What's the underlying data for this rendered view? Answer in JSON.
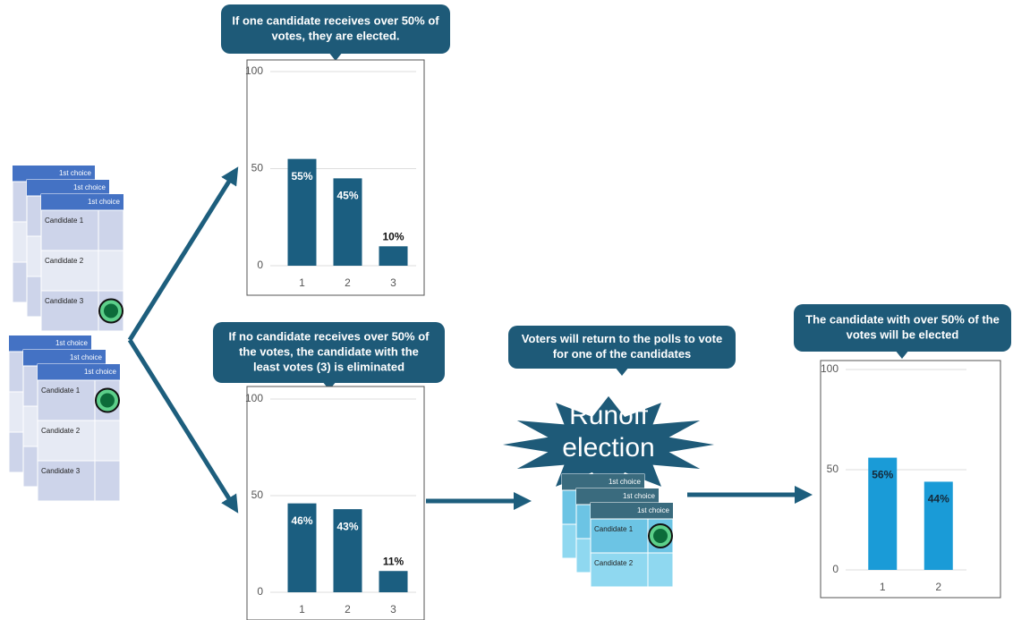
{
  "callouts": [
    {
      "lines": [
        "If one candidate receives over 50% of",
        "votes, they are elected."
      ]
    },
    {
      "lines": [
        "If no candidate receives over 50% of",
        "the votes, the candidate with the",
        "least votes (3) is eliminated"
      ]
    },
    {
      "lines": [
        "Voters will return to the polls to vote",
        "for one of the candidates"
      ]
    },
    {
      "lines": [
        "The candidate with over 50% of the",
        "votes will be elected"
      ]
    }
  ],
  "runoff": {
    "lines": [
      "Runoff",
      "election"
    ]
  },
  "ballot": {
    "header": "1st choice",
    "candidates": [
      "Candidate 1",
      "Candidate 2",
      "Candidate 3"
    ]
  },
  "chart_data": [
    {
      "type": "bar",
      "categories": [
        "1",
        "2",
        "3"
      ],
      "values": [
        55,
        45,
        10
      ],
      "value_labels": [
        "55%",
        "45%",
        "10%"
      ],
      "color": "#1b5e80",
      "ylim": [
        0,
        100
      ],
      "yticks": [
        0,
        50,
        100
      ],
      "grid": true
    },
    {
      "type": "bar",
      "categories": [
        "1",
        "2",
        "3"
      ],
      "values": [
        46,
        43,
        11
      ],
      "value_labels": [
        "46%",
        "43%",
        "11%"
      ],
      "color": "#1b5e80",
      "ylim": [
        0,
        100
      ],
      "yticks": [
        0,
        50,
        100
      ],
      "grid": true
    },
    {
      "type": "bar",
      "categories": [
        "1",
        "2"
      ],
      "values": [
        56,
        44
      ],
      "value_labels": [
        "56%",
        "44%"
      ],
      "color": "#1a9bd7",
      "ylim": [
        0,
        100
      ],
      "yticks": [
        0,
        50,
        100
      ],
      "grid": true
    }
  ]
}
